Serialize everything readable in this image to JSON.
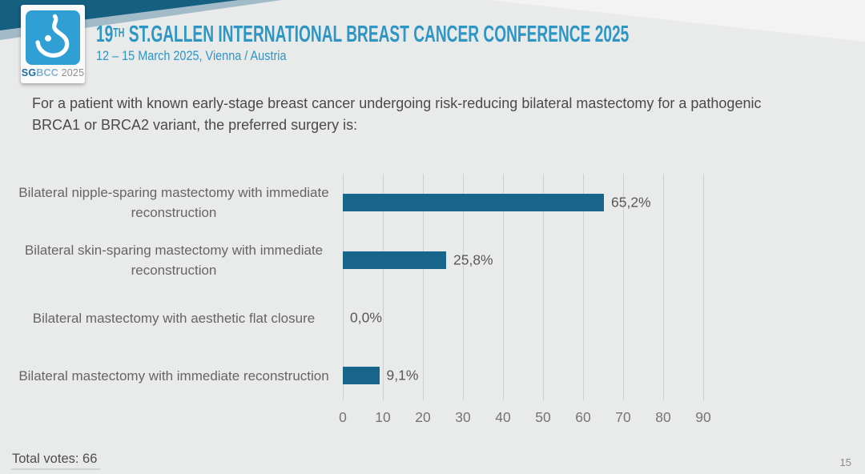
{
  "colors": {
    "accent_blue": "#2d96c5",
    "band_dark": "#155f80",
    "logo_blue": "#2f9fd4",
    "bar_teal": "#17658a",
    "background": "#e9eaea"
  },
  "header": {
    "logo": {
      "sg": "SG",
      "bcc": "BCC",
      "year": " 2025"
    },
    "title_prefix": "19",
    "title_sup": "TH",
    "title_rest": " ST.GALLEN INTERNATIONAL BREAST CANCER CONFERENCE 2025",
    "subtitle": "12 – 15 March 2025, Vienna / Austria"
  },
  "question": "For a patient with known early-stage breast cancer undergoing risk-reducing bilateral mastectomy for a pathogenic BRCA1 or BRCA2 variant, the preferred surgery is:",
  "chart_data": {
    "type": "bar",
    "orientation": "horizontal",
    "title": "",
    "categories": [
      "Bilateral nipple-sparing mastectomy with immediate reconstruction",
      "Bilateral skin-sparing mastectomy with immediate reconstruction",
      "Bilateral mastectomy with aesthetic flat closure",
      "Bilateral mastectomy with immediate reconstruction"
    ],
    "values": [
      65.2,
      25.8,
      0.0,
      9.1
    ],
    "value_labels": [
      "65,2%",
      "25,8%",
      "0,0%",
      "9,1%"
    ],
    "x_ticks": [
      0,
      10,
      20,
      30,
      40,
      50,
      60,
      70,
      80,
      90
    ],
    "xlim": [
      0,
      90
    ],
    "bar_color": "#17658a",
    "grid": true,
    "legend": false
  },
  "footer": {
    "total_votes": "Total votes: 66",
    "page_number": "15"
  }
}
